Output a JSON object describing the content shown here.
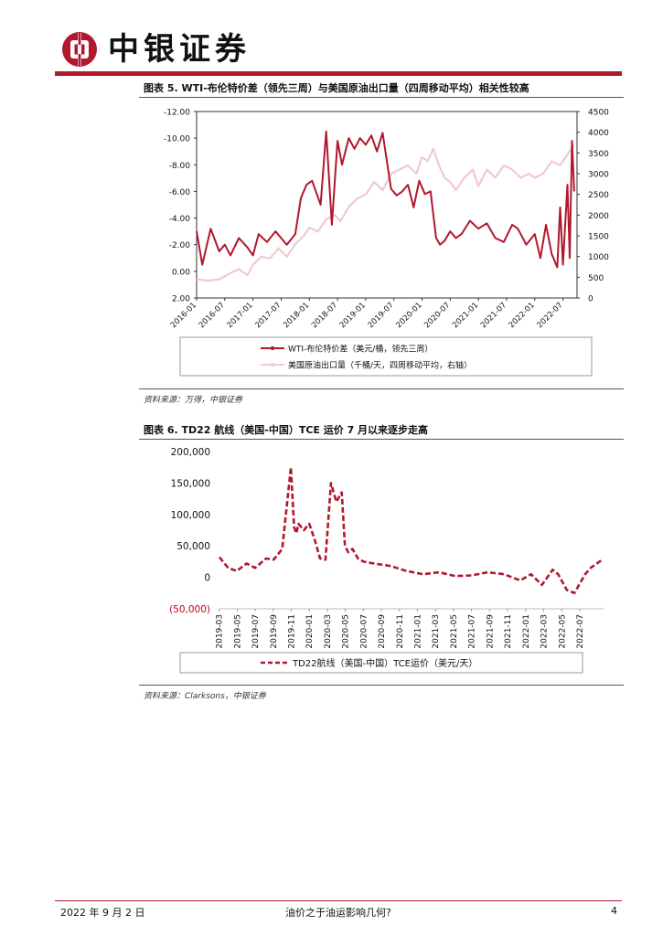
{
  "header": {
    "brand": "中银证券"
  },
  "figure5": {
    "title": "图表 5. WTI-布伦特价差（领先三周）与美国原油出口量（四周移动平均）相关性较高",
    "source": "资料来源：万得，中银证券",
    "chart_data": {
      "type": "line",
      "left_axis": {
        "ticks": [
          "-12.00",
          "-10.00",
          "-8.00",
          "-6.00",
          "-4.00",
          "-2.00",
          "0.00",
          "2.00"
        ],
        "range": [
          -12,
          2
        ],
        "inverted": true
      },
      "right_axis": {
        "ticks": [
          "4500",
          "4000",
          "3500",
          "3000",
          "2500",
          "2000",
          "1500",
          "1000",
          "500",
          "0"
        ],
        "range": [
          0,
          4500
        ]
      },
      "x_ticks": [
        "2016-01",
        "2016-07",
        "2017-01",
        "2017-07",
        "2018-01",
        "2018-07",
        "2019-01",
        "2019-07",
        "2020-01",
        "2020-07",
        "2021-01",
        "2021-07",
        "2022-01",
        "2022-07"
      ],
      "series": [
        {
          "name": "WTI-布伦特价差（美元/桶，领先三周）",
          "color": "#b0182e",
          "axis": "left",
          "x": [
            2016.0,
            2016.1,
            2016.25,
            2016.4,
            2016.5,
            2016.6,
            2016.75,
            2016.9,
            2017.0,
            2017.1,
            2017.25,
            2017.4,
            2017.5,
            2017.6,
            2017.75,
            2017.85,
            2017.95,
            2018.05,
            2018.2,
            2018.3,
            2018.4,
            2018.5,
            2018.58,
            2018.7,
            2018.8,
            2018.9,
            2019.0,
            2019.1,
            2019.2,
            2019.3,
            2019.45,
            2019.55,
            2019.65,
            2019.75,
            2019.85,
            2019.95,
            2020.05,
            2020.15,
            2020.25,
            2020.32,
            2020.4,
            2020.5,
            2020.6,
            2020.7,
            2020.85,
            2021.0,
            2021.15,
            2021.3,
            2021.45,
            2021.6,
            2021.7,
            2021.85,
            2022.0,
            2022.1,
            2022.2,
            2022.3,
            2022.4,
            2022.45,
            2022.5,
            2022.58,
            2022.62,
            2022.66,
            2022.7
          ],
          "values": [
            -3.0,
            -0.5,
            -3.2,
            -1.5,
            -2.0,
            -1.2,
            -2.5,
            -1.8,
            -1.2,
            -2.8,
            -2.2,
            -3.0,
            -2.5,
            -2.0,
            -2.8,
            -5.5,
            -6.5,
            -6.8,
            -5.0,
            -10.5,
            -3.5,
            -9.8,
            -8.0,
            -10.0,
            -9.2,
            -10.0,
            -9.5,
            -10.2,
            -9.0,
            -10.4,
            -6.2,
            -5.7,
            -6.0,
            -6.5,
            -4.8,
            -6.8,
            -5.8,
            -6.0,
            -2.5,
            -2.0,
            -2.3,
            -3.0,
            -2.5,
            -2.8,
            -3.8,
            -3.2,
            -3.6,
            -2.5,
            -2.2,
            -3.5,
            -3.2,
            -2.0,
            -2.8,
            -1.0,
            -3.5,
            -1.3,
            -0.3,
            -4.8,
            -0.5,
            -6.5,
            -1.0,
            -9.8,
            -6.0
          ]
        },
        {
          "name": "美国原油出口量（千桶/天，四周移动平均，右轴）",
          "color": "#f2c9d0",
          "axis": "right",
          "x": [
            2016.0,
            2016.2,
            2016.4,
            2016.6,
            2016.75,
            2016.9,
            2017.0,
            2017.15,
            2017.3,
            2017.45,
            2017.6,
            2017.75,
            2017.9,
            2018.0,
            2018.15,
            2018.3,
            2018.45,
            2018.55,
            2018.7,
            2018.85,
            2019.0,
            2019.15,
            2019.3,
            2019.45,
            2019.6,
            2019.75,
            2019.9,
            2020.0,
            2020.1,
            2020.2,
            2020.3,
            2020.4,
            2020.5,
            2020.6,
            2020.75,
            2020.9,
            2021.0,
            2021.15,
            2021.3,
            2021.45,
            2021.6,
            2021.75,
            2021.9,
            2022.0,
            2022.15,
            2022.3,
            2022.45,
            2022.6,
            2022.7
          ],
          "values": [
            450,
            420,
            450,
            600,
            700,
            550,
            800,
            1000,
            950,
            1200,
            1000,
            1300,
            1500,
            1700,
            1600,
            1900,
            2000,
            1850,
            2200,
            2400,
            2500,
            2800,
            2600,
            3000,
            3100,
            3200,
            3000,
            3400,
            3300,
            3600,
            3200,
            2900,
            2800,
            2600,
            2900,
            3100,
            2700,
            3100,
            2900,
            3200,
            3100,
            2900,
            3000,
            2900,
            3000,
            3300,
            3200,
            3500,
            3700
          ]
        }
      ]
    }
  },
  "figure6": {
    "title": "图表 6. TD22 航线（美国-中国）TCE 运价 7 月以来逐步走高",
    "source": "资料来源：Clarksons，中银证券",
    "chart_data": {
      "type": "line",
      "y_ticks": [
        "200,000",
        "150,000",
        "100,000",
        "50,000",
        "0",
        "(50,000)"
      ],
      "ylim": [
        -50000,
        200000
      ],
      "x_ticks": [
        "2019-03",
        "2019-05",
        "2019-07",
        "2019-09",
        "2019-11",
        "2020-01",
        "2020-03",
        "2020-05",
        "2020-07",
        "2020-09",
        "2020-11",
        "2021-01",
        "2021-03",
        "2021-05",
        "2021-07",
        "2021-09",
        "2021-11",
        "2022-01",
        "2022-03",
        "2022-05",
        "2022-07"
      ],
      "series": [
        {
          "name": "TD22航线（美国-中国）TCE运价（美元/天）",
          "color": "#b0182e",
          "x": [
            2019.17,
            2019.25,
            2019.33,
            2019.42,
            2019.5,
            2019.6,
            2019.67,
            2019.75,
            2019.83,
            2019.86,
            2019.88,
            2019.9,
            2019.95,
            2020.0,
            2020.05,
            2020.1,
            2020.15,
            2020.2,
            2020.25,
            2020.3,
            2020.33,
            2020.36,
            2020.4,
            2020.45,
            2020.5,
            2020.6,
            2020.75,
            2020.9,
            2021.05,
            2021.2,
            2021.35,
            2021.5,
            2021.65,
            2021.8,
            2021.95,
            2022.05,
            2022.15,
            2022.25,
            2022.3,
            2022.38,
            2022.45,
            2022.5,
            2022.55,
            2022.6,
            2022.7
          ],
          "values": [
            32000,
            15000,
            10000,
            22000,
            15000,
            30000,
            28000,
            45000,
            175000,
            80000,
            70000,
            85000,
            75000,
            85000,
            60000,
            30000,
            28000,
            150000,
            120000,
            135000,
            50000,
            40000,
            45000,
            30000,
            25000,
            22000,
            18000,
            10000,
            5000,
            8000,
            2000,
            3000,
            8000,
            5000,
            -5000,
            5000,
            -12000,
            12000,
            5000,
            -20000,
            -25000,
            -10000,
            5000,
            15000,
            27000
          ]
        }
      ]
    }
  },
  "footer": {
    "date": "2022 年 9 月 2 日",
    "title": "油价之于油运影响几何?",
    "page": "4"
  }
}
